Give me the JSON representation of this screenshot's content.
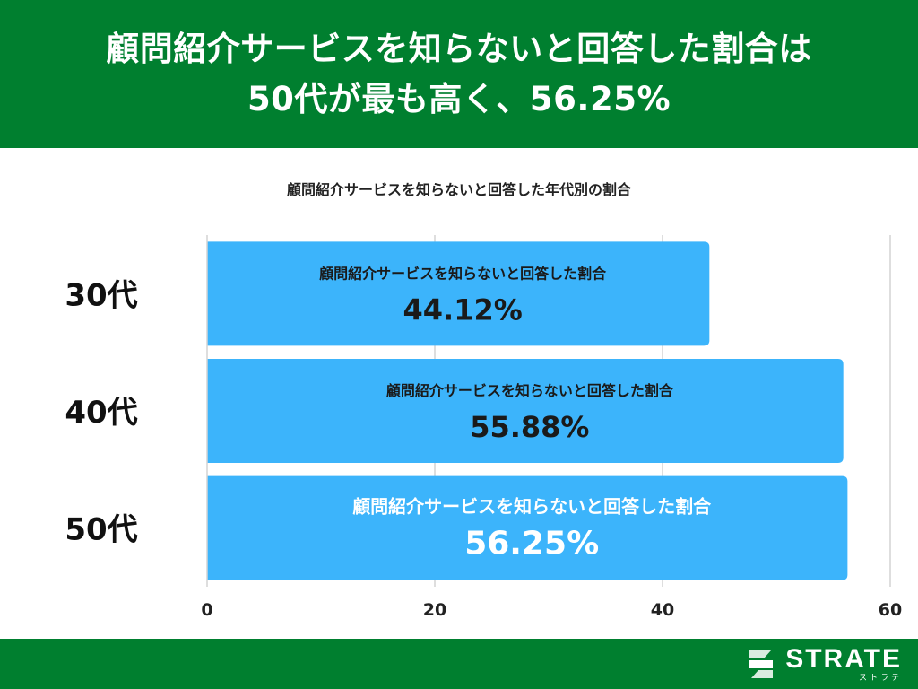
{
  "header": {
    "title_line1": "顧問紹介サービスを知らないと回答した割合は",
    "title_line2": "50代が最も高く、56.25%"
  },
  "footer": {
    "logo_name": "STRATE",
    "logo_sub": "ストラテ"
  },
  "chart_data": {
    "type": "bar",
    "orientation": "horizontal",
    "title": "顧問紹介サービスを知らないと回答した年代別の割合",
    "categories": [
      "30代",
      "40代",
      "50代"
    ],
    "values": [
      44.12,
      55.88,
      56.25
    ],
    "value_labels": [
      "44.12%",
      "55.88%",
      "56.25%"
    ],
    "bar_caption": "顧問紹介サービスを知らないと回答した割合",
    "xlim": [
      0,
      60
    ],
    "xticks": [
      0,
      20,
      40,
      60
    ],
    "grid": true,
    "colors": {
      "bar": "#3cb4fb",
      "bar_text_dark": "#1a1a1a",
      "bar_text_light": "#ffffff"
    },
    "highlight_index": 2
  }
}
